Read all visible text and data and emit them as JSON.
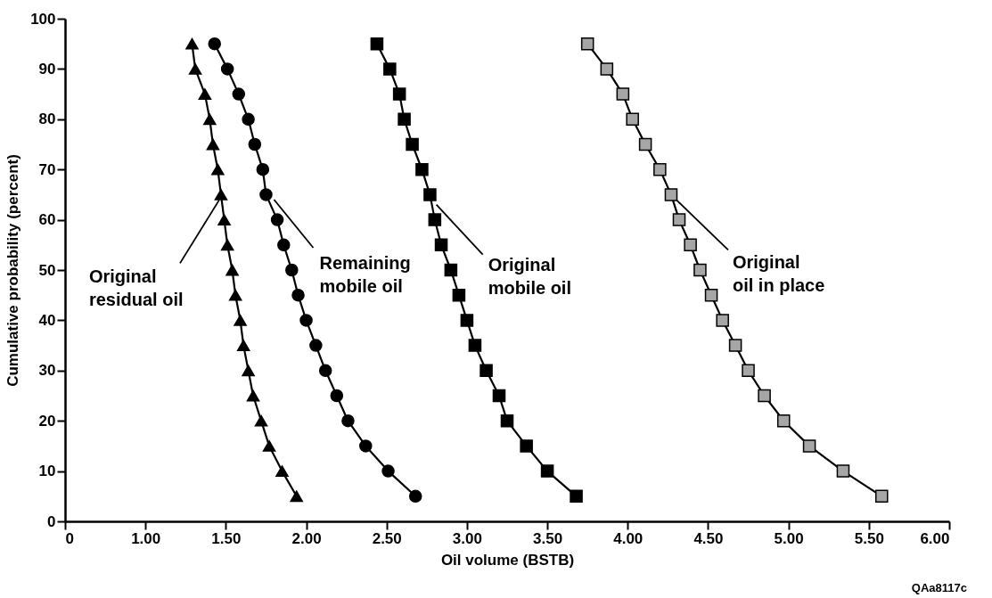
{
  "chart_data": {
    "type": "line",
    "xlabel": "Oil volume (BSTB)",
    "ylabel": "Cumulative probability (percent)",
    "xlim": [
      0.5,
      6
    ],
    "ylim": [
      0,
      100
    ],
    "xticks": [
      {
        "value": 0.5,
        "label": "0"
      },
      {
        "value": 1,
        "label": "1.00"
      },
      {
        "value": 1.5,
        "label": "1.50"
      },
      {
        "value": 2,
        "label": "2.00"
      },
      {
        "value": 2.5,
        "label": "2.50"
      },
      {
        "value": 3,
        "label": "3.00"
      },
      {
        "value": 3.5,
        "label": "3.50"
      },
      {
        "value": 4,
        "label": "4.00"
      },
      {
        "value": 4.5,
        "label": "4.50"
      },
      {
        "value": 5,
        "label": "5.00"
      },
      {
        "value": 5.5,
        "label": "5.50"
      },
      {
        "value": 6,
        "label": "6.00"
      }
    ],
    "yticks": [
      0,
      10,
      20,
      30,
      40,
      50,
      60,
      70,
      80,
      90,
      100
    ],
    "grid": false,
    "line_style": "solid",
    "series": [
      {
        "marker": "triangle",
        "color": "#000000",
        "values": [
          95,
          90,
          85,
          80,
          75,
          70,
          65,
          60,
          55,
          50,
          45,
          40,
          35,
          30,
          25,
          20,
          15,
          10,
          5
        ],
        "x": [
          1.29,
          1.31,
          1.37,
          1.4,
          1.42,
          1.45,
          1.47,
          1.49,
          1.51,
          1.54,
          1.56,
          1.59,
          1.61,
          1.64,
          1.67,
          1.72,
          1.77,
          1.85,
          1.94
        ]
      },
      {
        "marker": "circle",
        "color": "#000000",
        "values": [
          95,
          90,
          85,
          80,
          75,
          70,
          65,
          60,
          55,
          50,
          45,
          40,
          35,
          30,
          25,
          20,
          15,
          10,
          5
        ],
        "x": [
          1.43,
          1.51,
          1.58,
          1.64,
          1.68,
          1.73,
          1.75,
          1.82,
          1.86,
          1.91,
          1.95,
          2.0,
          2.06,
          2.12,
          2.19,
          2.26,
          2.37,
          2.51,
          2.68
        ]
      },
      {
        "marker": "square",
        "color": "#000000",
        "values": [
          95,
          90,
          85,
          80,
          75,
          70,
          65,
          60,
          55,
          50,
          45,
          40,
          35,
          30,
          25,
          20,
          15,
          10,
          5
        ],
        "x": [
          2.44,
          2.52,
          2.58,
          2.61,
          2.66,
          2.72,
          2.77,
          2.8,
          2.84,
          2.9,
          2.95,
          3.0,
          3.05,
          3.12,
          3.2,
          3.25,
          3.37,
          3.5,
          3.68
        ]
      },
      {
        "marker": "square",
        "color": "#a6a6a6",
        "values": [
          95,
          90,
          85,
          80,
          75,
          70,
          65,
          60,
          55,
          50,
          45,
          40,
          35,
          30,
          25,
          20,
          15,
          10,
          5
        ],
        "x": [
          3.75,
          3.87,
          3.97,
          4.03,
          4.11,
          4.2,
          4.27,
          4.32,
          4.39,
          4.45,
          4.52,
          4.59,
          4.67,
          4.75,
          4.85,
          4.97,
          5.13,
          5.34,
          5.58
        ]
      }
    ],
    "annotations": [
      {
        "text": "Original\nresidual oil",
        "x": 1.47,
        "y": 65
      },
      {
        "text": "Remaining\nmobile oil",
        "x": 1.8,
        "y": 64
      },
      {
        "text": "Original\nmobile oil",
        "x": 2.81,
        "y": 63
      },
      {
        "text": "Original\noil in place",
        "x": 4.27,
        "y": 65
      },
      "QAa8117c"
    ]
  }
}
